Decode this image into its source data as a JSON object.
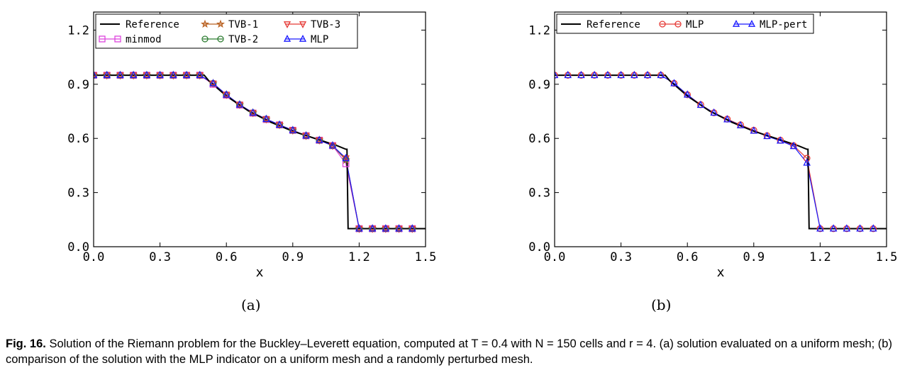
{
  "figure": {
    "subfigures": [
      {
        "label": "(a)"
      },
      {
        "label": "(b)"
      }
    ],
    "caption": {
      "prefix": "Fig. 16.",
      "text": "Solution of the Riemann problem for the Buckley–Leverett equation, computed at T = 0.4 with N = 150 cells and r = 4. (a) solution evaluated on a uniform mesh; (b) comparison of the solution with the MLP indicator on a uniform mesh and a randomly perturbed mesh."
    }
  },
  "chart_data": [
    {
      "type": "line",
      "panel": "(a)",
      "title": "",
      "xlabel": "x",
      "ylabel": "",
      "xlim": [
        0.0,
        1.5
      ],
      "ylim": [
        0.0,
        1.3
      ],
      "xticks": [
        "0.0",
        "0.3",
        "0.6",
        "0.9",
        "1.2",
        "1.5"
      ],
      "yticks": [
        "0.0",
        "0.3",
        "0.6",
        "0.9",
        "1.2"
      ],
      "grid": false,
      "legend_position": "top",
      "legend_order": [
        "Reference",
        "TVB-1",
        "TVB-3",
        "minmod",
        "TVB-2",
        "MLP"
      ],
      "reference": {
        "name": "Reference",
        "color": "#000000",
        "x": [
          0.0,
          0.5,
          0.52,
          0.6,
          0.7,
          0.8,
          0.9,
          1.0,
          1.1,
          1.14,
          1.145,
          1.15,
          1.5
        ],
        "y": [
          0.95,
          0.95,
          0.92,
          0.835,
          0.752,
          0.69,
          0.64,
          0.6,
          0.56,
          0.54,
          0.54,
          0.1,
          0.1
        ]
      },
      "series": [
        {
          "name": "minmod",
          "color": "#dd44dd",
          "marker": "square",
          "x": [
            0.0,
            0.06,
            0.12,
            0.18,
            0.24,
            0.3,
            0.36,
            0.42,
            0.48,
            0.54,
            0.6,
            0.66,
            0.72,
            0.78,
            0.84,
            0.9,
            0.96,
            1.02,
            1.08,
            1.14,
            1.2,
            1.26,
            1.32,
            1.38,
            1.44
          ],
          "y": [
            0.95,
            0.95,
            0.95,
            0.95,
            0.95,
            0.95,
            0.95,
            0.95,
            0.95,
            0.9,
            0.84,
            0.785,
            0.74,
            0.705,
            0.675,
            0.645,
            0.615,
            0.59,
            0.56,
            0.46,
            0.1,
            0.1,
            0.1,
            0.1,
            0.1
          ]
        },
        {
          "name": "TVB-1",
          "color": "#b86020",
          "marker": "star",
          "x": [
            0.0,
            0.06,
            0.12,
            0.18,
            0.24,
            0.3,
            0.36,
            0.42,
            0.48,
            0.54,
            0.6,
            0.66,
            0.72,
            0.78,
            0.84,
            0.9,
            0.96,
            1.02,
            1.08,
            1.14,
            1.2,
            1.26,
            1.32,
            1.38,
            1.44
          ],
          "y": [
            0.95,
            0.95,
            0.95,
            0.95,
            0.95,
            0.95,
            0.95,
            0.95,
            0.95,
            0.905,
            0.842,
            0.787,
            0.742,
            0.707,
            0.675,
            0.645,
            0.615,
            0.59,
            0.56,
            0.48,
            0.1,
            0.1,
            0.1,
            0.1,
            0.1
          ]
        },
        {
          "name": "TVB-2",
          "color": "#2e7d32",
          "marker": "circle",
          "x": [
            0.0,
            0.06,
            0.12,
            0.18,
            0.24,
            0.3,
            0.36,
            0.42,
            0.48,
            0.54,
            0.6,
            0.66,
            0.72,
            0.78,
            0.84,
            0.9,
            0.96,
            1.02,
            1.08,
            1.14,
            1.2,
            1.26,
            1.32,
            1.38,
            1.44
          ],
          "y": [
            0.95,
            0.95,
            0.95,
            0.95,
            0.95,
            0.95,
            0.95,
            0.95,
            0.95,
            0.905,
            0.842,
            0.787,
            0.742,
            0.707,
            0.675,
            0.645,
            0.615,
            0.59,
            0.56,
            0.485,
            0.1,
            0.1,
            0.1,
            0.1,
            0.1
          ]
        },
        {
          "name": "TVB-3",
          "color": "#e53935",
          "marker": "triangle-down",
          "x": [
            0.0,
            0.06,
            0.12,
            0.18,
            0.24,
            0.3,
            0.36,
            0.42,
            0.48,
            0.54,
            0.6,
            0.66,
            0.72,
            0.78,
            0.84,
            0.9,
            0.96,
            1.02,
            1.08,
            1.14,
            1.2,
            1.26,
            1.32,
            1.38,
            1.44
          ],
          "y": [
            0.95,
            0.95,
            0.95,
            0.95,
            0.95,
            0.95,
            0.95,
            0.95,
            0.95,
            0.905,
            0.842,
            0.787,
            0.742,
            0.707,
            0.675,
            0.645,
            0.615,
            0.59,
            0.56,
            0.49,
            0.1,
            0.1,
            0.1,
            0.1,
            0.1
          ]
        },
        {
          "name": "MLP",
          "color": "#1a1aff",
          "marker": "triangle-up",
          "x": [
            0.0,
            0.06,
            0.12,
            0.18,
            0.24,
            0.3,
            0.36,
            0.42,
            0.48,
            0.54,
            0.6,
            0.66,
            0.72,
            0.78,
            0.84,
            0.9,
            0.96,
            1.02,
            1.08,
            1.14,
            1.2,
            1.26,
            1.32,
            1.38,
            1.44
          ],
          "y": [
            0.95,
            0.95,
            0.95,
            0.95,
            0.95,
            0.95,
            0.95,
            0.95,
            0.95,
            0.905,
            0.842,
            0.787,
            0.742,
            0.707,
            0.675,
            0.645,
            0.615,
            0.59,
            0.56,
            0.49,
            0.1,
            0.1,
            0.1,
            0.1,
            0.1
          ]
        }
      ]
    },
    {
      "type": "line",
      "panel": "(b)",
      "title": "",
      "xlabel": "x",
      "ylabel": "",
      "xlim": [
        0.0,
        1.5
      ],
      "ylim": [
        0.0,
        1.3
      ],
      "xticks": [
        "0.0",
        "0.3",
        "0.6",
        "0.9",
        "1.2",
        "1.5"
      ],
      "yticks": [
        "0.0",
        "0.3",
        "0.6",
        "0.9",
        "1.2"
      ],
      "grid": false,
      "legend_position": "top",
      "legend_order": [
        "Reference",
        "MLP",
        "MLP-pert"
      ],
      "reference": {
        "name": "Reference",
        "color": "#000000",
        "x": [
          0.0,
          0.5,
          0.52,
          0.6,
          0.7,
          0.8,
          0.9,
          1.0,
          1.1,
          1.14,
          1.145,
          1.15,
          1.5
        ],
        "y": [
          0.95,
          0.95,
          0.92,
          0.835,
          0.752,
          0.69,
          0.64,
          0.6,
          0.56,
          0.54,
          0.54,
          0.1,
          0.1
        ]
      },
      "series": [
        {
          "name": "MLP",
          "color": "#e53935",
          "marker": "circle",
          "x": [
            0.0,
            0.06,
            0.12,
            0.18,
            0.24,
            0.3,
            0.36,
            0.42,
            0.48,
            0.54,
            0.6,
            0.66,
            0.72,
            0.78,
            0.84,
            0.9,
            0.96,
            1.02,
            1.08,
            1.14,
            1.2,
            1.26,
            1.32,
            1.38,
            1.44
          ],
          "y": [
            0.95,
            0.95,
            0.95,
            0.95,
            0.95,
            0.95,
            0.95,
            0.95,
            0.95,
            0.905,
            0.842,
            0.787,
            0.742,
            0.707,
            0.675,
            0.645,
            0.615,
            0.59,
            0.56,
            0.49,
            0.1,
            0.1,
            0.1,
            0.1,
            0.1
          ]
        },
        {
          "name": "MLP-pert",
          "color": "#1a1aff",
          "marker": "triangle-up",
          "x": [
            0.0,
            0.06,
            0.12,
            0.18,
            0.24,
            0.3,
            0.36,
            0.42,
            0.48,
            0.54,
            0.6,
            0.66,
            0.72,
            0.78,
            0.84,
            0.9,
            0.96,
            1.02,
            1.08,
            1.14,
            1.2,
            1.26,
            1.32,
            1.38,
            1.44
          ],
          "y": [
            0.95,
            0.95,
            0.95,
            0.95,
            0.95,
            0.95,
            0.95,
            0.95,
            0.95,
            0.905,
            0.842,
            0.785,
            0.742,
            0.705,
            0.672,
            0.642,
            0.612,
            0.587,
            0.557,
            0.465,
            0.1,
            0.1,
            0.1,
            0.1,
            0.1
          ]
        }
      ]
    }
  ]
}
